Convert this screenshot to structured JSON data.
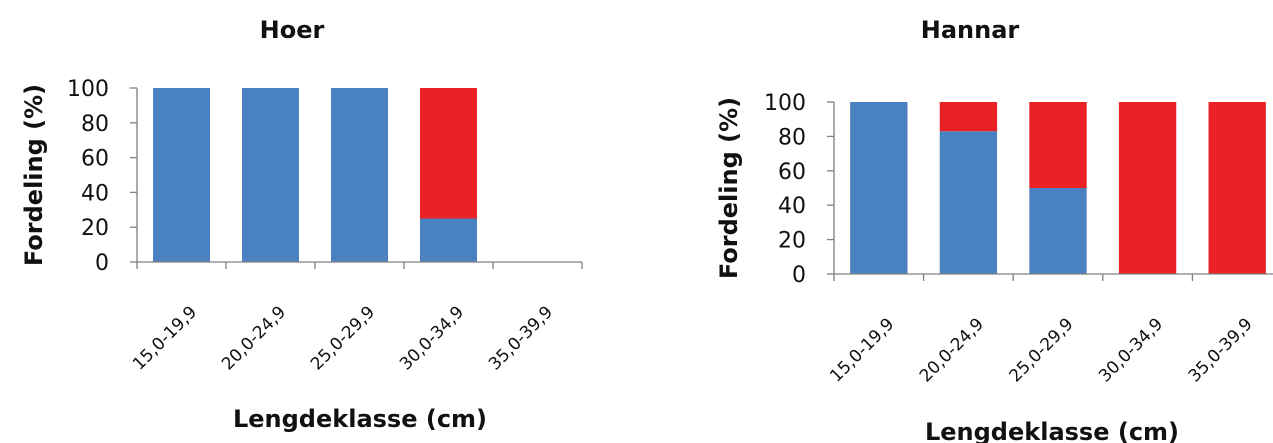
{
  "chart_data": [
    {
      "type": "bar",
      "stacked": true,
      "title": "Hoer",
      "xlabel": "Lengdeklasse (cm)",
      "ylabel": "Fordeling (%)",
      "ylim": [
        0,
        100
      ],
      "yticks": [
        "0",
        "20",
        "40",
        "60",
        "80",
        "100"
      ],
      "categories": [
        "15,0-19,9",
        "20,0-24,9",
        "25,0-29,9",
        "30,0-34,9",
        "35,0-39,9"
      ],
      "series": [
        {
          "values": [
            100,
            100,
            100,
            25,
            0
          ],
          "color": "#4a81c1"
        },
        {
          "values": [
            0,
            0,
            0,
            75,
            0
          ],
          "color": "#ea2125"
        }
      ],
      "grid": false,
      "legend": "none"
    },
    {
      "type": "bar",
      "stacked": true,
      "title": "Hannar",
      "xlabel": "Lengdeklasse (cm)",
      "ylabel": "Fordeling (%)",
      "ylim": [
        0,
        100
      ],
      "yticks": [
        "0",
        "20",
        "40",
        "60",
        "80",
        "100"
      ],
      "categories": [
        "15,0-19,9",
        "20,0-24,9",
        "25,0-29,9",
        "30,0-34,9",
        "35,0-39,9"
      ],
      "series": [
        {
          "values": [
            100,
            83,
            50,
            0,
            0
          ],
          "color": "#4a81c1"
        },
        {
          "values": [
            0,
            17,
            50,
            100,
            100
          ],
          "color": "#ea2125"
        }
      ],
      "grid": false,
      "legend": "none"
    }
  ]
}
